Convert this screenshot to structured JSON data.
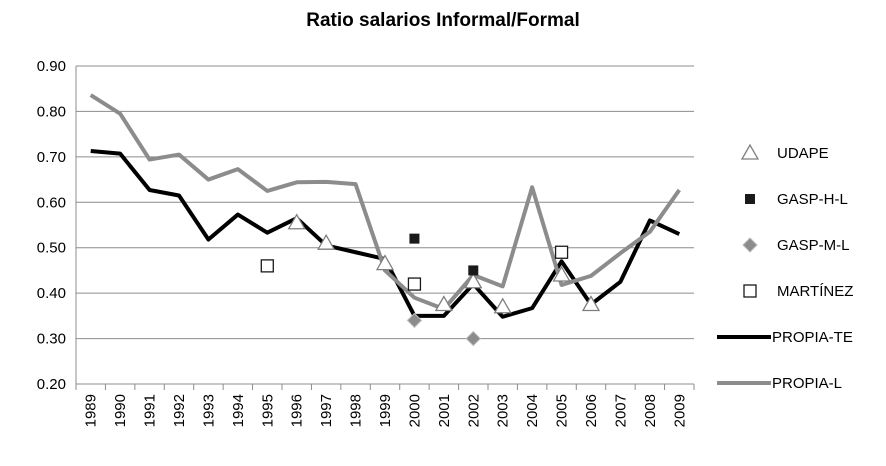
{
  "chart_data": {
    "type": "line",
    "title": "Ratio salarios Informal/Formal",
    "categories": [
      "1989",
      "1990",
      "1991",
      "1992",
      "1993",
      "1994",
      "1995",
      "1996",
      "1997",
      "1998",
      "1999",
      "2000",
      "2001",
      "2002",
      "2003",
      "2004",
      "2005",
      "2006",
      "2007",
      "2008",
      "2009"
    ],
    "ylim": [
      0.2,
      0.9
    ],
    "yticks": [
      {
        "value": 0.2,
        "label": "0.20"
      },
      {
        "value": 0.3,
        "label": "0.30"
      },
      {
        "value": 0.4,
        "label": "0.40"
      },
      {
        "value": 0.5,
        "label": "0.50"
      },
      {
        "value": 0.6,
        "label": "0.60"
      },
      {
        "value": 0.7,
        "label": "0.70"
      },
      {
        "value": 0.8,
        "label": "0.80"
      },
      {
        "value": 0.9,
        "label": "0.90"
      }
    ],
    "grid": true,
    "legend": "right",
    "series": [
      {
        "name": "UDAPE",
        "marker": "triangle",
        "color": "#7f7f7f",
        "values": [
          null,
          null,
          null,
          null,
          null,
          null,
          null,
          0.555,
          0.51,
          null,
          0.465,
          null,
          0.375,
          0.425,
          0.37,
          null,
          0.44,
          0.375,
          null,
          null,
          null
        ]
      },
      {
        "name": "GASP-H-L",
        "marker": "square-filled",
        "color": "#1a1a1a",
        "values": [
          null,
          null,
          null,
          null,
          null,
          null,
          null,
          null,
          null,
          null,
          null,
          0.52,
          null,
          0.45,
          null,
          null,
          null,
          null,
          null,
          null,
          null
        ]
      },
      {
        "name": "GASP-M-L",
        "marker": "diamond",
        "color": "#8c8c8c",
        "values": [
          null,
          null,
          null,
          null,
          null,
          null,
          null,
          null,
          null,
          null,
          null,
          0.34,
          null,
          0.3,
          null,
          null,
          null,
          null,
          null,
          null,
          null
        ]
      },
      {
        "name": "MARTÍNEZ",
        "marker": "square-open",
        "color": "#1a1a1a",
        "values": [
          null,
          null,
          null,
          null,
          null,
          null,
          0.46,
          null,
          null,
          null,
          null,
          0.42,
          null,
          null,
          null,
          null,
          0.49,
          null,
          null,
          null,
          null
        ]
      },
      {
        "name": "PROPIA-TE",
        "marker": "line",
        "color": "#000000",
        "values": [
          0.713,
          0.707,
          0.627,
          0.615,
          0.518,
          0.573,
          0.533,
          0.565,
          0.505,
          0.49,
          0.475,
          0.35,
          0.35,
          0.42,
          0.348,
          0.367,
          0.47,
          0.375,
          0.425,
          0.56,
          0.53
        ]
      },
      {
        "name": "PROPIA-L",
        "marker": "line",
        "color": "#8c8c8c",
        "values": [
          0.836,
          0.795,
          0.694,
          0.705,
          0.65,
          0.673,
          0.625,
          0.644,
          0.645,
          0.64,
          0.45,
          0.39,
          0.365,
          0.44,
          0.415,
          0.633,
          0.418,
          0.438,
          0.488,
          0.535,
          0.627
        ]
      }
    ]
  }
}
